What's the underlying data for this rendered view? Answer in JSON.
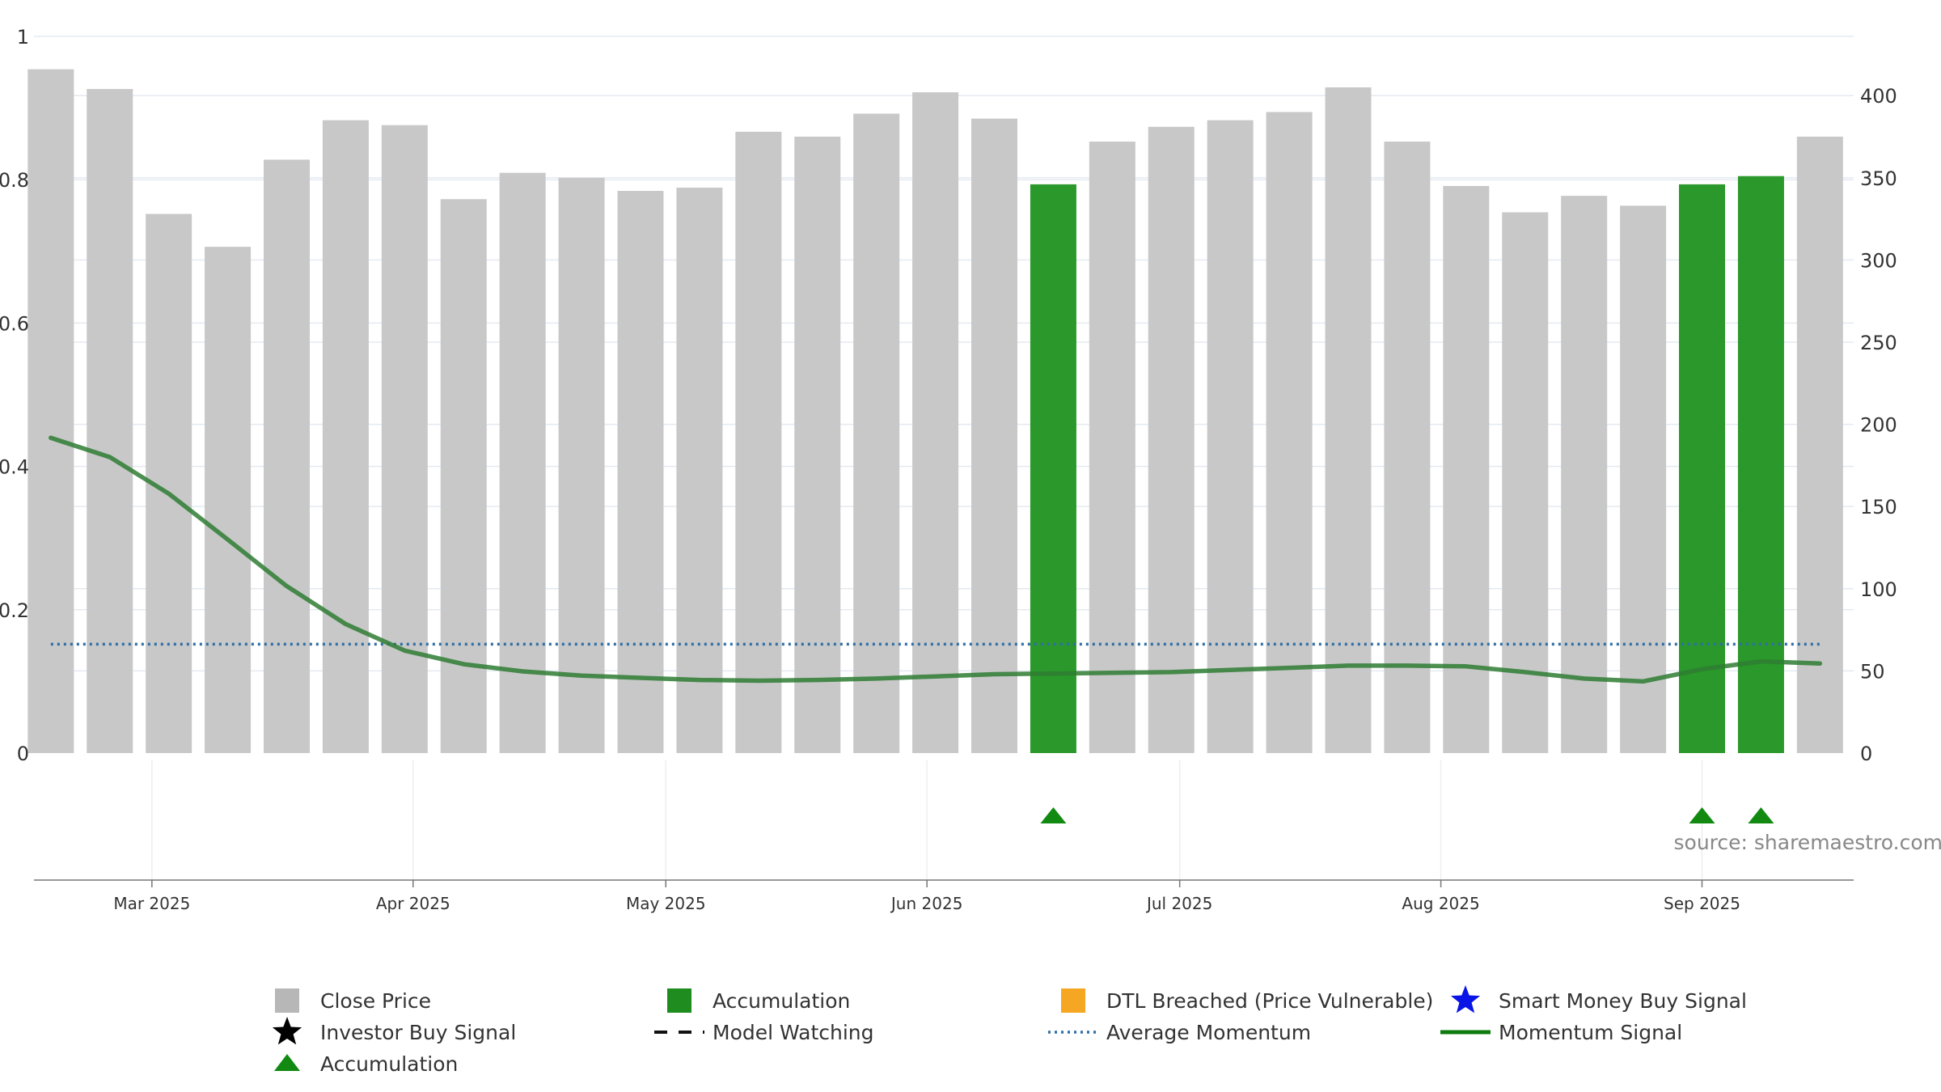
{
  "chart_data": {
    "type": "bar",
    "x": [
      "2025-02-17",
      "2025-02-24",
      "2025-03-03",
      "2025-03-10",
      "2025-03-17",
      "2025-03-24",
      "2025-03-31",
      "2025-04-07",
      "2025-04-14",
      "2025-04-21",
      "2025-04-28",
      "2025-05-05",
      "2025-05-12",
      "2025-05-19",
      "2025-05-26",
      "2025-06-02",
      "2025-06-09",
      "2025-06-16",
      "2025-06-23",
      "2025-06-30",
      "2025-07-07",
      "2025-07-14",
      "2025-07-21",
      "2025-07-28",
      "2025-08-04",
      "2025-08-11",
      "2025-08-18",
      "2025-08-25",
      "2025-09-01",
      "2025-09-08",
      "2025-09-15"
    ],
    "xlim": [
      "2025-02-15",
      "2025-09-19"
    ],
    "series": [
      {
        "name": "Close Price",
        "axis": "right",
        "color": "#c8c8c8",
        "values": [
          416,
          404,
          328,
          308,
          361,
          385,
          382,
          337,
          353,
          350,
          342,
          344,
          378,
          375,
          389,
          402,
          386,
          346,
          372,
          381,
          385,
          390,
          405,
          372,
          345,
          329,
          339,
          333,
          346,
          351,
          375
        ]
      },
      {
        "name": "Momentum Signal",
        "axis": "left",
        "color": "#2e7d32",
        "values": [
          0.44,
          0.413,
          0.362,
          0.298,
          0.233,
          0.18,
          0.143,
          0.124,
          0.114,
          0.108,
          0.105,
          0.102,
          0.101,
          0.102,
          0.104,
          0.107,
          0.11,
          0.111,
          0.112,
          0.113,
          0.116,
          0.119,
          0.122,
          0.122,
          0.121,
          0.113,
          0.104,
          0.1,
          0.117,
          0.128,
          0.125
        ]
      },
      {
        "name": "Average Momentum",
        "axis": "left",
        "color": "#2f6fa6",
        "value": 0.152
      }
    ],
    "accumulation_indices": [
      17,
      28,
      29
    ],
    "accumulation_color": "#2a982a",
    "left_axis": {
      "ylim": [
        0,
        1
      ],
      "ticks": [
        0,
        0.2,
        0.4,
        0.6,
        0.8,
        1
      ],
      "tick_labels": [
        "0",
        "0.2",
        "0.4",
        "0.6",
        "0.8",
        "1"
      ]
    },
    "right_axis": {
      "ylim": [
        0,
        436
      ],
      "ticks": [
        0,
        50,
        100,
        150,
        200,
        250,
        300,
        350,
        400
      ],
      "tick_labels": [
        "0",
        "50",
        "100",
        "150",
        "200",
        "250",
        "300",
        "350",
        "400"
      ]
    },
    "x_ticks": [
      {
        "date": "2025-03-01",
        "label": "Mar 2025"
      },
      {
        "date": "2025-04-01",
        "label": "Apr 2025"
      },
      {
        "date": "2025-05-01",
        "label": "May 2025"
      },
      {
        "date": "2025-06-01",
        "label": "Jun 2025"
      },
      {
        "date": "2025-07-01",
        "label": "Jul 2025"
      },
      {
        "date": "2025-08-01",
        "label": "Aug 2025"
      },
      {
        "date": "2025-09-01",
        "label": "Sep 2025"
      }
    ],
    "grid": true,
    "source": "source: sharemaestro.com",
    "legend": {
      "placement": "bottom",
      "items": [
        {
          "label": "Close Price",
          "symbol": "square",
          "color": "#b7b7b7"
        },
        {
          "label": "Accumulation",
          "symbol": "square",
          "color": "#1e8c1e"
        },
        {
          "label": "DTL Breached (Price Vulnerable)",
          "symbol": "square",
          "color": "#f5a623"
        },
        {
          "label": "Smart Money Buy Signal",
          "symbol": "star",
          "color": "#0a14e6"
        },
        {
          "label": "Investor Buy Signal",
          "symbol": "star",
          "color": "#000000"
        },
        {
          "label": "Model Watching",
          "symbol": "dash",
          "color": "#111111"
        },
        {
          "label": "Average Momentum",
          "symbol": "dot",
          "color": "#2f6fa6"
        },
        {
          "label": "Momentum Signal",
          "symbol": "line",
          "color": "#0c7a0c"
        },
        {
          "label": "Accumulation",
          "symbol": "triangle",
          "color": "#128a12"
        }
      ]
    }
  }
}
